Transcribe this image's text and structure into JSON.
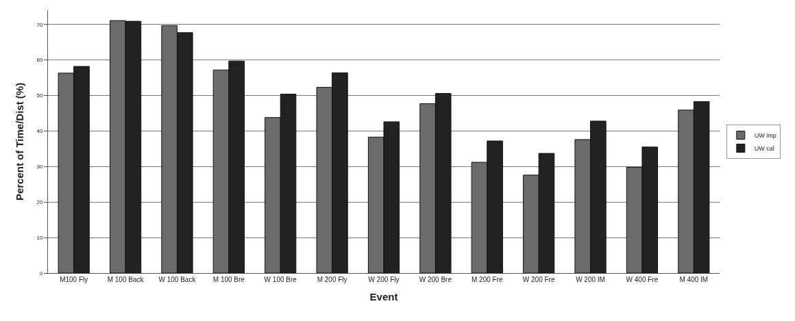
{
  "chart_data": {
    "type": "bar",
    "xlabel": "Event",
    "ylabel": "Percent of Time/Dist (%)",
    "categories": [
      "M100 Fly",
      "M 100 Back",
      "W 100 Back",
      "M 100 Bre",
      "W 100 Bre",
      "M 200 Fly",
      "W 200 Fly",
      "W 200 Bre",
      "M 200 Fre",
      "W 200 Fre",
      "W 200 IM",
      "W 400 Fre",
      "M 400 IM"
    ],
    "series": [
      {
        "name": "UW imp",
        "color": "#6b6b6b",
        "values": [
          56.3,
          71.1,
          69.7,
          57.2,
          43.8,
          52.3,
          38.3,
          47.7,
          31.2,
          27.6,
          37.6,
          29.8,
          45.9
        ]
      },
      {
        "name": "UW cal",
        "color": "#222222",
        "values": [
          58.2,
          70.9,
          67.7,
          59.7,
          50.4,
          56.4,
          42.6,
          50.6,
          37.2,
          33.7,
          42.8,
          35.5,
          48.3
        ]
      }
    ],
    "ylim": [
      0,
      74
    ],
    "yticks": [
      0,
      10,
      20,
      30,
      40,
      50,
      60,
      70
    ],
    "grid": "y",
    "legend": "right"
  }
}
